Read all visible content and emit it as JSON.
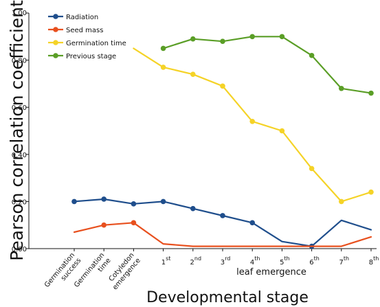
{
  "chart_data": {
    "type": "line",
    "title": "",
    "ylabel": "Pearson correlation coefficient",
    "xlabel": "Developmental stage",
    "x_group_label": "leaf emergence",
    "ylim": [
      0,
      1
    ],
    "yticks": [
      "0.00",
      "0.20",
      "0.40",
      "0.60",
      "0.80",
      "1.00"
    ],
    "categories": [
      {
        "lines": [
          "Germination",
          "success"
        ],
        "sup": "",
        "rotated": true
      },
      {
        "lines": [
          "Germination",
          "time"
        ],
        "sup": "",
        "rotated": true
      },
      {
        "lines": [
          "Cotyledon",
          "emergence"
        ],
        "sup": "",
        "rotated": true
      },
      {
        "lines": [
          "1"
        ],
        "sup": "st",
        "rotated": false
      },
      {
        "lines": [
          "2"
        ],
        "sup": "nd",
        "rotated": false
      },
      {
        "lines": [
          "3"
        ],
        "sup": "rd",
        "rotated": false
      },
      {
        "lines": [
          "4"
        ],
        "sup": "th",
        "rotated": false
      },
      {
        "lines": [
          "5"
        ],
        "sup": "th",
        "rotated": false
      },
      {
        "lines": [
          "6"
        ],
        "sup": "th",
        "rotated": false
      },
      {
        "lines": [
          "7"
        ],
        "sup": "th",
        "rotated": false
      },
      {
        "lines": [
          "8"
        ],
        "sup": "th",
        "rotated": false
      }
    ],
    "legend_position": "top-left",
    "grid": false,
    "series": [
      {
        "name": "Radiation",
        "color": "#1f4e8c",
        "values": [
          0.2,
          0.21,
          0.19,
          0.2,
          0.17,
          0.14,
          0.11,
          0.03,
          0.01,
          0.12,
          0.08
        ],
        "markers": [
          true,
          true,
          true,
          true,
          true,
          true,
          true,
          false,
          true,
          false,
          false
        ]
      },
      {
        "name": "Seed mass",
        "color": "#e8501e",
        "values": [
          0.07,
          0.1,
          0.11,
          0.02,
          0.01,
          0.01,
          0.01,
          0.01,
          0.01,
          0.01,
          0.05
        ],
        "markers": [
          false,
          true,
          true,
          false,
          false,
          false,
          false,
          false,
          false,
          false,
          false
        ]
      },
      {
        "name": "Germination time",
        "color": "#f5d327",
        "values": [
          null,
          null,
          0.85,
          0.77,
          0.74,
          0.69,
          0.54,
          0.5,
          0.34,
          0.2,
          0.24
        ],
        "markers": [
          false,
          false,
          false,
          true,
          true,
          true,
          true,
          true,
          true,
          true,
          true
        ]
      },
      {
        "name": "Previous stage",
        "color": "#5a9e26",
        "values": [
          null,
          null,
          null,
          0.85,
          0.89,
          0.88,
          0.9,
          0.9,
          0.82,
          0.68,
          0.66
        ],
        "markers": [
          false,
          false,
          false,
          true,
          true,
          true,
          true,
          true,
          true,
          true,
          true
        ]
      }
    ]
  }
}
